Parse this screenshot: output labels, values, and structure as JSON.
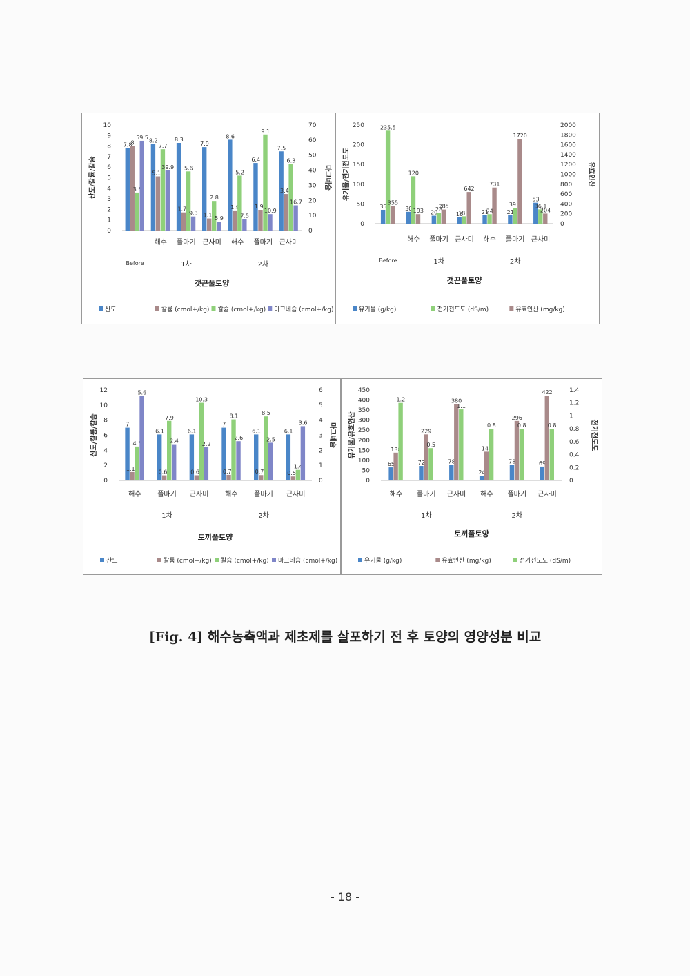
{
  "caption": "[Fig. 4] 해수농축액과 제초제를 살포하기 전 후 토양의 영양성분 비교",
  "page_number": "- 18 -",
  "colors": {
    "blue": "#4a86c8",
    "brown": "#a98a8a",
    "green": "#8fd07a",
    "purple": "#7f86c8"
  },
  "chart_data": [
    {
      "id": "chart1",
      "type": "bar",
      "title": "갯끈풀토양",
      "categories": [
        "Before",
        "해수",
        "풀마기",
        "근사미",
        "해수",
        "풀마기",
        "근사미"
      ],
      "groups": [
        "1차",
        "2차"
      ],
      "ylabel": "산도/칼륨/칼슘",
      "y2label": "마그네슘",
      "ylim": [
        0,
        10
      ],
      "yticks": [
        "0",
        "1",
        "2",
        "3",
        "4",
        "5",
        "6",
        "7",
        "8",
        "9",
        "10"
      ],
      "y2lim": [
        0,
        70
      ],
      "y2ticks": [
        "0",
        "10",
        "20",
        "30",
        "40",
        "50",
        "60",
        "70"
      ],
      "series": [
        {
          "name": "산도",
          "color": "blue",
          "axis": "left",
          "values": [
            7.8,
            8.2,
            8.3,
            7.9,
            8.6,
            6.4,
            7.5
          ],
          "labels": [
            "7.8",
            "8.2",
            "8.3",
            "7.9",
            "8.6",
            "6.4",
            "7.5"
          ]
        },
        {
          "name": "칼륨 (cmol+/kg)",
          "color": "brown",
          "axis": "left",
          "values": [
            8,
            5.13,
            1.72,
            1.14,
            1.9,
            1.96,
            3.46
          ],
          "labels": [
            "8",
            "5.13",
            "1.72",
            "1.14",
            "1.9",
            "1.96",
            "3.46"
          ]
        },
        {
          "name": "칼슘 (cmol+/kg)",
          "color": "green",
          "axis": "left",
          "values": [
            3.6,
            7.7,
            5.6,
            2.8,
            5.2,
            9.1,
            6.3
          ],
          "labels": [
            "3.6",
            "7.7",
            "5.6",
            "2.8",
            "5.2",
            "9.1",
            "6.3"
          ]
        },
        {
          "name": "마그네슘 (cmol+/kg)",
          "color": "purple",
          "axis": "right",
          "values": [
            59.5,
            39.9,
            9.3,
            5.9,
            7.5,
            10.9,
            16.7
          ],
          "labels": [
            "59.5",
            "39.9",
            "9.3",
            "5.9",
            "7.5",
            "10.9",
            "16.7"
          ]
        }
      ]
    },
    {
      "id": "chart2",
      "type": "bar",
      "title": "갯끈풀토양",
      "categories": [
        "Before",
        "해수",
        "풀마기",
        "근사미",
        "해수",
        "풀마기",
        "근사미"
      ],
      "groups": [
        "1차",
        "2차"
      ],
      "ylabel": "유기물/전기전도도",
      "y2label": "유효인산",
      "ylim": [
        0,
        250
      ],
      "yticks": [
        "0",
        "50",
        "100",
        "150",
        "200",
        "250"
      ],
      "y2lim": [
        0,
        2000
      ],
      "y2ticks": [
        "0",
        "200",
        "400",
        "600",
        "800",
        "1000",
        "1200",
        "1400",
        "1600",
        "1800",
        "2000"
      ],
      "series": [
        {
          "name": "유기물 (g/kg)",
          "color": "blue",
          "axis": "left",
          "values": [
            35,
            30,
            20,
            16,
            21,
            21,
            53
          ],
          "labels": [
            "35",
            "30",
            "20",
            "16",
            "21",
            "21",
            "53"
          ]
        },
        {
          "name": "전기전도도 (dS/m)",
          "color": "green",
          "axis": "left",
          "values": [
            235.5,
            120,
            28,
            18.6,
            24,
            39.8,
            36.1
          ],
          "labels": [
            "235.5",
            "120",
            "28",
            "18.6",
            "24",
            "39.8",
            "36.1"
          ]
        },
        {
          "name": "유효인산 (mg/kg)",
          "color": "brown",
          "axis": "right",
          "values": [
            355,
            193,
            285,
            642,
            731,
            1720,
            204
          ],
          "labels": [
            "355",
            "193",
            "285",
            "642",
            "731",
            "1720",
            "204"
          ]
        }
      ]
    },
    {
      "id": "chart3",
      "type": "bar",
      "title": "토끼풀토양",
      "categories": [
        "해수",
        "풀마기",
        "근사미",
        "해수",
        "풀마기",
        "근사미"
      ],
      "groups": [
        "1차",
        "2차"
      ],
      "ylabel": "산도/칼륨/칼슘",
      "y2label": "마그네슘",
      "ylim": [
        0,
        12
      ],
      "yticks": [
        "0",
        "2",
        "4",
        "6",
        "8",
        "10",
        "12"
      ],
      "y2lim": [
        0,
        6
      ],
      "y2ticks": [
        "0",
        "1",
        "2",
        "3",
        "4",
        "5",
        "6"
      ],
      "series": [
        {
          "name": "산도",
          "color": "blue",
          "axis": "left",
          "values": [
            7,
            6.1,
            6.1,
            7,
            6.1,
            6.1
          ],
          "labels": [
            "7",
            "6.1",
            "6.1",
            "7",
            "6.1",
            "6.1"
          ]
        },
        {
          "name": "칼륨 (cmol+/kg)",
          "color": "brown",
          "axis": "left",
          "values": [
            1.11,
            0.68,
            0.69,
            0.74,
            0.71,
            0.53
          ],
          "labels": [
            "1.11",
            "0.68",
            "0.69",
            "0.74",
            "0.71",
            "0.53"
          ]
        },
        {
          "name": "칼슘 (cmol+/kg)",
          "color": "green",
          "axis": "left",
          "values": [
            4.5,
            7.9,
            10.3,
            8.1,
            8.5,
            1.4
          ],
          "labels": [
            "4.5",
            "7.9",
            "10.3",
            "8.1",
            "8.5",
            "1.4"
          ]
        },
        {
          "name": "마그네슘 (cmol+/kg)",
          "color": "purple",
          "axis": "right",
          "values": [
            5.6,
            2.4,
            2.2,
            2.6,
            2.5,
            3.6
          ],
          "labels": [
            "5.6",
            "2.4",
            "2.2",
            "2.6",
            "2.5",
            "3.6"
          ]
        }
      ]
    },
    {
      "id": "chart4",
      "type": "bar",
      "title": "토끼풀토양",
      "categories": [
        "해수",
        "풀마기",
        "근사미",
        "해수",
        "풀마기",
        "근사미"
      ],
      "groups": [
        "1차",
        "2차"
      ],
      "ylabel": "유기물/유효인산",
      "y2label": "전기전도도",
      "ylim": [
        0,
        450
      ],
      "yticks": [
        "0",
        "50",
        "100",
        "150",
        "200",
        "250",
        "300",
        "350",
        "400",
        "450"
      ],
      "y2lim": [
        0,
        1.4
      ],
      "y2ticks": [
        "0",
        "0.2",
        "0.4",
        "0.6",
        "0.8",
        "1",
        "1.2",
        "1.4"
      ],
      "series": [
        {
          "name": "유기물 (g/kg)",
          "color": "blue",
          "axis": "left",
          "values": [
            65,
            72,
            78,
            24,
            78,
            69
          ],
          "labels": [
            "65",
            "72",
            "78",
            "24",
            "78",
            "69"
          ]
        },
        {
          "name": "유효인산 (mg/kg)",
          "color": "brown",
          "axis": "left",
          "values": [
            138,
            229,
            380,
            143,
            296,
            422
          ],
          "labels": [
            "138",
            "229",
            "380",
            "143",
            "296",
            "422"
          ]
        },
        {
          "name": "전기전도도 (dS/m)",
          "color": "green",
          "axis": "right",
          "values": [
            1.2,
            0.5,
            1.1,
            0.8,
            0.8,
            0.8
          ],
          "labels": [
            "1.2",
            "0.5",
            "1.1",
            "0.8",
            "0.8",
            "0.8"
          ]
        }
      ]
    }
  ]
}
